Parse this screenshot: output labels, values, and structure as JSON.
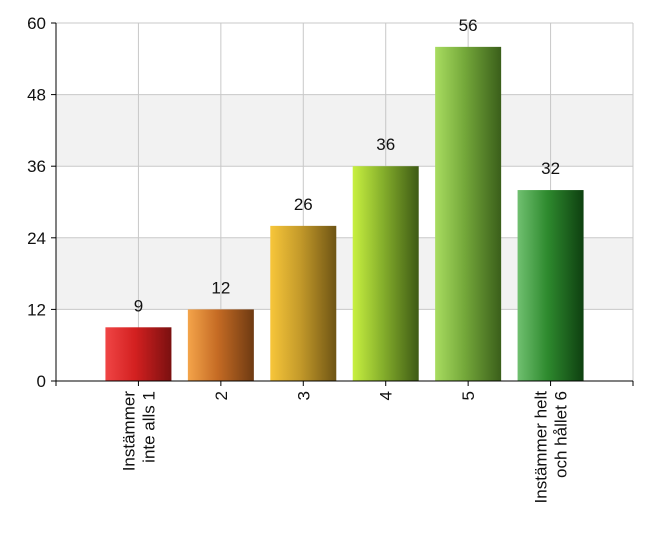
{
  "chart_data": {
    "type": "bar",
    "title": "",
    "xlabel": "",
    "ylabel": "",
    "categories": [
      [
        "Instämmer",
        "inte alls 1"
      ],
      [
        "2"
      ],
      [
        "3"
      ],
      [
        "4"
      ],
      [
        "5"
      ],
      [
        "Instämmer helt",
        "och hållet 6"
      ]
    ],
    "values": [
      9,
      12,
      26,
      36,
      56,
      32
    ],
    "ylim": [
      0,
      60
    ],
    "yticks": [
      0,
      12,
      24,
      36,
      48,
      60
    ],
    "grid": true,
    "legend": "none",
    "bar_colors": [
      [
        "#f04545",
        "#d32020",
        "#7a1010"
      ],
      [
        "#f4a44a",
        "#c56b24",
        "#6e3a12"
      ],
      [
        "#f7c63a",
        "#c49a2a",
        "#6e5414"
      ],
      [
        "#c8f040",
        "#86b02c",
        "#3e5a14"
      ],
      [
        "#a8dc60",
        "#74a83a",
        "#3a5e1a"
      ],
      [
        "#70c070",
        "#2e8a2e",
        "#0e4010"
      ]
    ]
  }
}
